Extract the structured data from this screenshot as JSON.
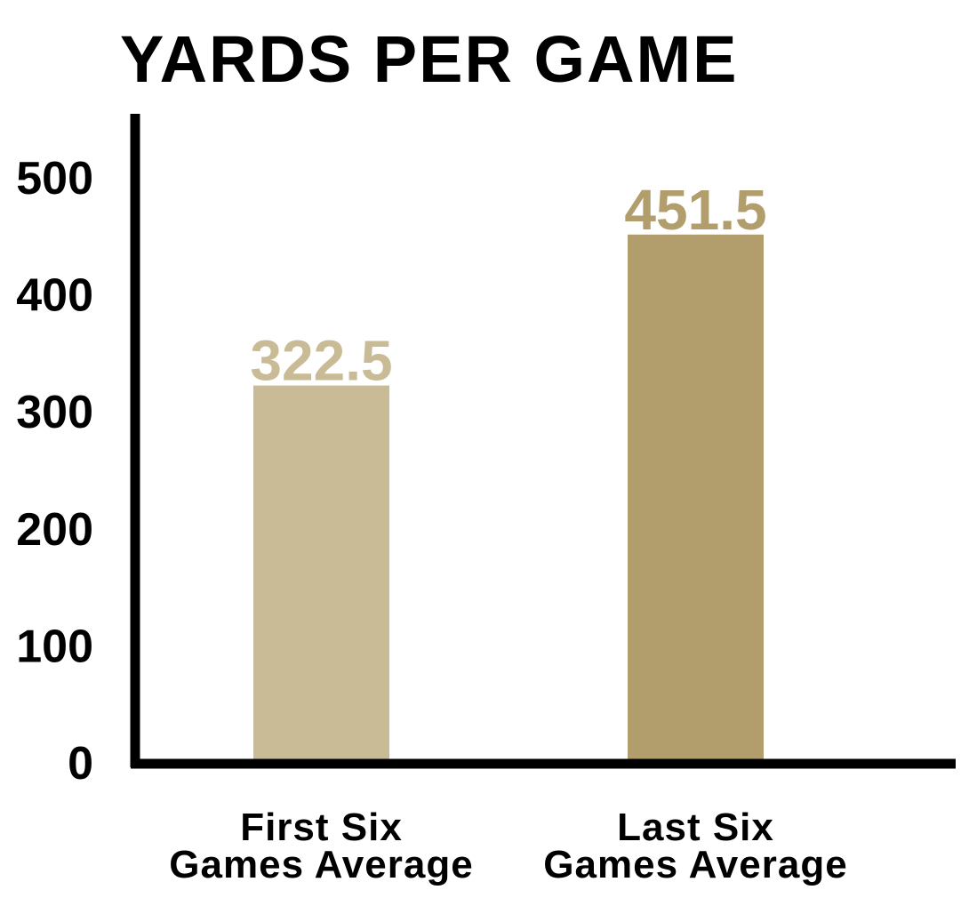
{
  "chart_data": {
    "type": "bar",
    "title": "YARDS PER GAME",
    "categories": [
      [
        "First Six",
        "Games Average"
      ],
      [
        "Last Six",
        "Games Average"
      ]
    ],
    "values": [
      322.5,
      451.5
    ],
    "data_labels": [
      "322.5",
      "451.5"
    ],
    "bar_colors": [
      "#c9bb96",
      "#b29d6c"
    ],
    "axis_color": "#000000",
    "ylim": [
      0,
      550
    ],
    "yticks": [
      0,
      100,
      200,
      300,
      400,
      500
    ],
    "grid": false,
    "legend": "none"
  }
}
